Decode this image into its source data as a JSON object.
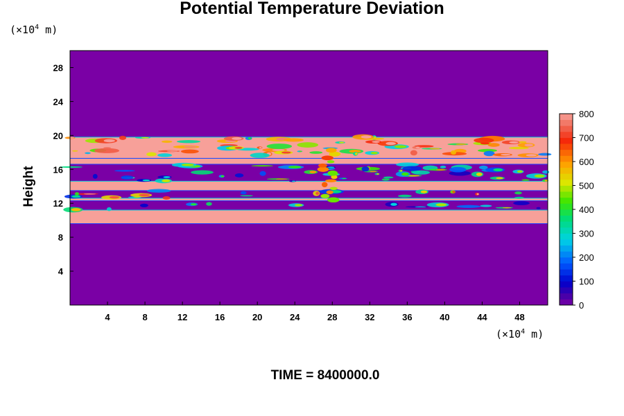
{
  "chart_data": {
    "type": "heatmap",
    "title": "Potential Temperature Deviation",
    "xlabel": "",
    "ylabel": "Height",
    "x_unit_prefix": "(×10",
    "x_unit_exp": "4",
    "x_unit_suffix": " m)",
    "y_unit_prefix": "(×10",
    "y_unit_exp": "4",
    "y_unit_suffix": " m)",
    "xlim": [
      0,
      51
    ],
    "ylim": [
      0,
      30
    ],
    "x_ticks": [
      4,
      8,
      12,
      16,
      20,
      24,
      28,
      32,
      36,
      40,
      44,
      48
    ],
    "y_ticks": [
      4,
      8,
      12,
      16,
      20,
      24,
      28
    ],
    "colorbar": {
      "min": 0,
      "max": 800,
      "ticks": [
        0,
        100,
        200,
        300,
        400,
        500,
        600,
        700,
        800
      ],
      "levels": 32
    },
    "background_value": 0,
    "saturated_bands": [
      {
        "y_from": 9.6,
        "y_to": 11.2,
        "value": 800
      },
      {
        "y_from": 12.3,
        "y_to": 12.6,
        "value": 800
      },
      {
        "y_from": 13.5,
        "y_to": 14.6,
        "value": 800
      },
      {
        "y_from": 16.6,
        "y_to": 17.3,
        "value": 800
      },
      {
        "y_from": 17.3,
        "y_to": 19.8,
        "value": 800
      }
    ],
    "time_label": "TIME = 8400000.0"
  },
  "colors": {
    "background": "#7a00a5",
    "saturated": "#f7a099"
  }
}
